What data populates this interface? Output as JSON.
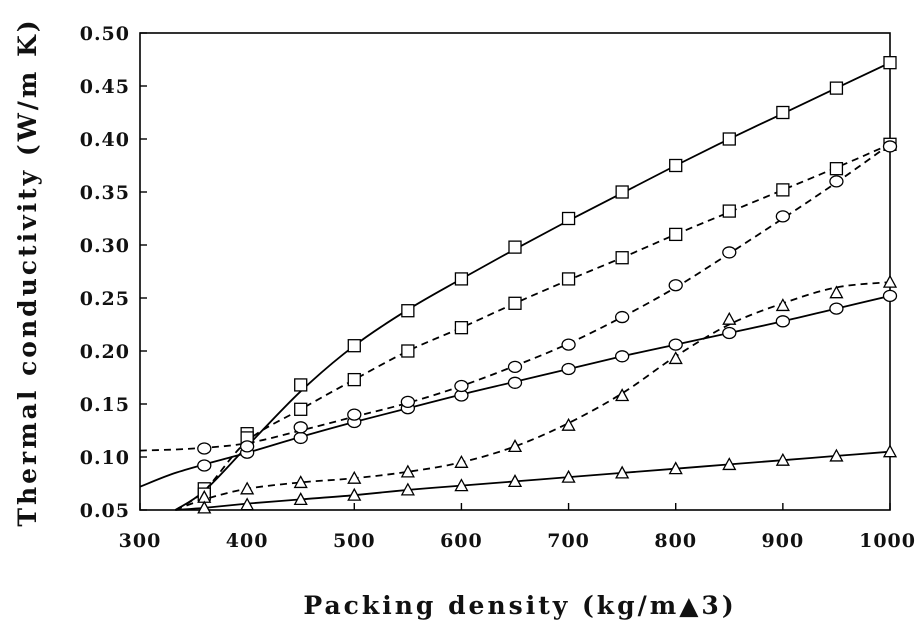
{
  "chart_data": {
    "type": "line",
    "title": "",
    "xlabel": "Packing density (kg/m▲3)",
    "ylabel": "Thermal conductivity (W/m K)",
    "xlim": [
      300,
      1000
    ],
    "ylim": [
      0.05,
      0.5
    ],
    "x_ticks": [
      "300",
      "400",
      "500",
      "600",
      "700",
      "800",
      "900",
      "1000"
    ],
    "y_ticks": [
      "0.05",
      "0.10",
      "0.15",
      "0.20",
      "0.25",
      "0.30",
      "0.35",
      "0.40",
      "0.45",
      "0.50"
    ],
    "grid": false,
    "series": [
      {
        "marker": "square",
        "line": "solid",
        "points": [
          [
            360,
            0.07
          ],
          [
            400,
            0.122
          ],
          [
            450,
            0.168
          ],
          [
            500,
            0.205
          ],
          [
            550,
            0.238
          ],
          [
            600,
            0.268
          ],
          [
            650,
            0.298
          ],
          [
            700,
            0.325
          ],
          [
            750,
            0.35
          ],
          [
            800,
            0.375
          ],
          [
            850,
            0.4
          ],
          [
            900,
            0.425
          ],
          [
            950,
            0.448
          ],
          [
            1000,
            0.472
          ]
        ],
        "curve": [
          [
            333,
            0.05
          ],
          [
            360,
            0.068
          ],
          [
            400,
            0.11
          ],
          [
            450,
            0.162
          ],
          [
            500,
            0.205
          ],
          [
            550,
            0.239
          ],
          [
            600,
            0.268
          ],
          [
            650,
            0.296
          ],
          [
            700,
            0.323
          ],
          [
            750,
            0.349
          ],
          [
            800,
            0.375
          ],
          [
            850,
            0.4
          ],
          [
            900,
            0.424
          ],
          [
            950,
            0.448
          ],
          [
            1000,
            0.472
          ]
        ]
      },
      {
        "marker": "square",
        "line": "dashed",
        "points": [
          [
            360,
            0.065
          ],
          [
            400,
            0.118
          ],
          [
            450,
            0.145
          ],
          [
            500,
            0.173
          ],
          [
            550,
            0.2
          ],
          [
            600,
            0.222
          ],
          [
            650,
            0.245
          ],
          [
            700,
            0.268
          ],
          [
            750,
            0.288
          ],
          [
            800,
            0.31
          ],
          [
            850,
            0.332
          ],
          [
            900,
            0.352
          ],
          [
            950,
            0.372
          ],
          [
            1000,
            0.395
          ]
        ],
        "curve": [
          [
            333,
            0.05
          ],
          [
            360,
            0.068
          ],
          [
            400,
            0.115
          ],
          [
            450,
            0.145
          ],
          [
            500,
            0.173
          ],
          [
            550,
            0.2
          ],
          [
            600,
            0.222
          ],
          [
            650,
            0.245
          ],
          [
            700,
            0.267
          ],
          [
            750,
            0.288
          ],
          [
            800,
            0.31
          ],
          [
            850,
            0.331
          ],
          [
            900,
            0.352
          ],
          [
            950,
            0.373
          ],
          [
            1000,
            0.395
          ]
        ]
      },
      {
        "marker": "circle",
        "line": "solid",
        "points": [
          [
            360,
            0.092
          ],
          [
            400,
            0.104
          ],
          [
            450,
            0.118
          ],
          [
            500,
            0.133
          ],
          [
            550,
            0.146
          ],
          [
            600,
            0.158
          ],
          [
            650,
            0.17
          ],
          [
            700,
            0.183
          ],
          [
            750,
            0.195
          ],
          [
            800,
            0.206
          ],
          [
            850,
            0.217
          ],
          [
            900,
            0.228
          ],
          [
            950,
            0.24
          ],
          [
            1000,
            0.252
          ]
        ],
        "curve": [
          [
            300,
            0.072
          ],
          [
            330,
            0.084
          ],
          [
            360,
            0.093
          ],
          [
            400,
            0.104
          ],
          [
            450,
            0.119
          ],
          [
            500,
            0.133
          ],
          [
            550,
            0.146
          ],
          [
            600,
            0.159
          ],
          [
            650,
            0.171
          ],
          [
            700,
            0.183
          ],
          [
            750,
            0.195
          ],
          [
            800,
            0.206
          ],
          [
            850,
            0.217
          ],
          [
            900,
            0.228
          ],
          [
            950,
            0.24
          ],
          [
            1000,
            0.252
          ]
        ]
      },
      {
        "marker": "circle",
        "line": "dashed",
        "points": [
          [
            360,
            0.108
          ],
          [
            400,
            0.11
          ],
          [
            450,
            0.128
          ],
          [
            500,
            0.14
          ],
          [
            550,
            0.152
          ],
          [
            600,
            0.167
          ],
          [
            650,
            0.185
          ],
          [
            700,
            0.206
          ],
          [
            750,
            0.232
          ],
          [
            800,
            0.262
          ],
          [
            850,
            0.293
          ],
          [
            900,
            0.327
          ],
          [
            950,
            0.36
          ],
          [
            1000,
            0.393
          ]
        ],
        "curve": [
          [
            300,
            0.106
          ],
          [
            350,
            0.108
          ],
          [
            400,
            0.113
          ],
          [
            450,
            0.125
          ],
          [
            500,
            0.138
          ],
          [
            550,
            0.151
          ],
          [
            600,
            0.167
          ],
          [
            650,
            0.186
          ],
          [
            700,
            0.207
          ],
          [
            750,
            0.232
          ],
          [
            800,
            0.26
          ],
          [
            850,
            0.292
          ],
          [
            900,
            0.325
          ],
          [
            950,
            0.359
          ],
          [
            1000,
            0.395
          ]
        ]
      },
      {
        "marker": "triangle",
        "line": "dashed",
        "points": [
          [
            360,
            0.062
          ],
          [
            400,
            0.07
          ],
          [
            450,
            0.076
          ],
          [
            500,
            0.08
          ],
          [
            550,
            0.086
          ],
          [
            600,
            0.095
          ],
          [
            650,
            0.11
          ],
          [
            700,
            0.13
          ],
          [
            750,
            0.158
          ],
          [
            800,
            0.193
          ],
          [
            850,
            0.23
          ],
          [
            900,
            0.243
          ],
          [
            950,
            0.255
          ],
          [
            1000,
            0.265
          ]
        ],
        "curve": [
          [
            333,
            0.05
          ],
          [
            360,
            0.06
          ],
          [
            400,
            0.07
          ],
          [
            450,
            0.076
          ],
          [
            500,
            0.08
          ],
          [
            550,
            0.086
          ],
          [
            600,
            0.095
          ],
          [
            650,
            0.11
          ],
          [
            700,
            0.132
          ],
          [
            750,
            0.16
          ],
          [
            800,
            0.195
          ],
          [
            850,
            0.225
          ],
          [
            900,
            0.245
          ],
          [
            950,
            0.26
          ],
          [
            1000,
            0.265
          ]
        ]
      },
      {
        "marker": "triangle",
        "line": "solid",
        "points": [
          [
            360,
            0.052
          ],
          [
            400,
            0.055
          ],
          [
            450,
            0.06
          ],
          [
            500,
            0.064
          ],
          [
            550,
            0.069
          ],
          [
            600,
            0.073
          ],
          [
            650,
            0.077
          ],
          [
            700,
            0.081
          ],
          [
            750,
            0.085
          ],
          [
            800,
            0.089
          ],
          [
            850,
            0.093
          ],
          [
            900,
            0.097
          ],
          [
            950,
            0.101
          ],
          [
            1000,
            0.105
          ]
        ],
        "curve": [
          [
            333,
            0.05
          ],
          [
            360,
            0.052
          ],
          [
            400,
            0.056
          ],
          [
            450,
            0.06
          ],
          [
            500,
            0.064
          ],
          [
            550,
            0.069
          ],
          [
            600,
            0.073
          ],
          [
            650,
            0.077
          ],
          [
            700,
            0.081
          ],
          [
            750,
            0.085
          ],
          [
            800,
            0.089
          ],
          [
            850,
            0.093
          ],
          [
            900,
            0.097
          ],
          [
            950,
            0.101
          ],
          [
            1000,
            0.105
          ]
        ]
      }
    ]
  }
}
